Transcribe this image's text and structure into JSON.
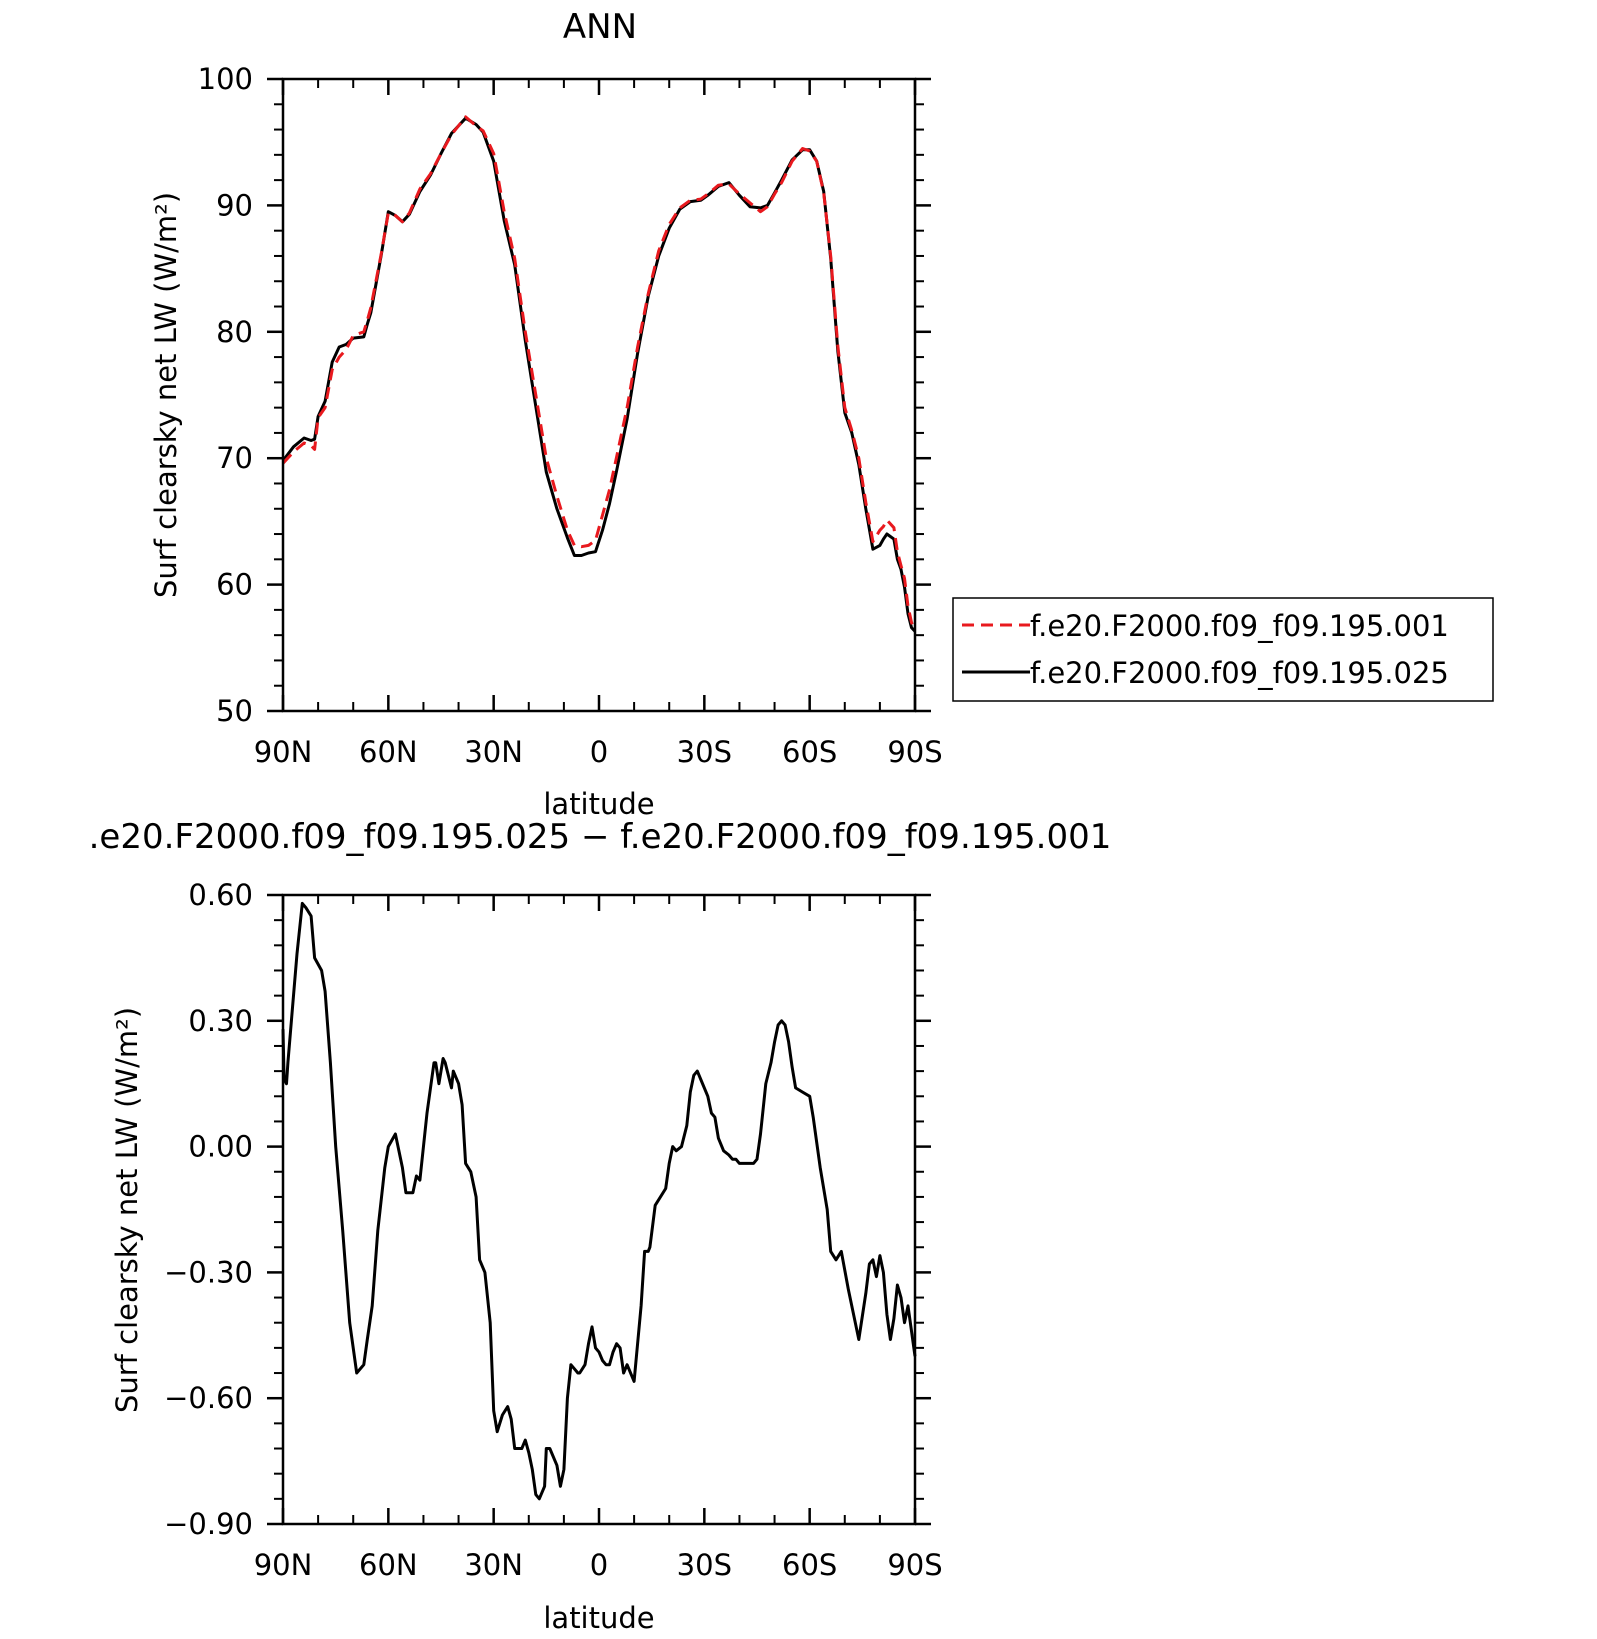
{
  "chart_data": [
    {
      "type": "line",
      "title": "ANN",
      "xlabel": "latitude",
      "ylabel": "Surf clearsky net LW (W/m²)",
      "xlim": [
        90,
        -90
      ],
      "ylim": [
        50,
        100
      ],
      "xticks": [
        {
          "value": 90,
          "label": "90N"
        },
        {
          "value": 60,
          "label": "60N"
        },
        {
          "value": 30,
          "label": "30N"
        },
        {
          "value": 0,
          "label": "0"
        },
        {
          "value": -30,
          "label": "30S"
        },
        {
          "value": -60,
          "label": "60S"
        },
        {
          "value": -90,
          "label": "90S"
        }
      ],
      "yticks": [
        {
          "value": 50,
          "label": "50"
        },
        {
          "value": 60,
          "label": "60"
        },
        {
          "value": 70,
          "label": "70"
        },
        {
          "value": 80,
          "label": "80"
        },
        {
          "value": 90,
          "label": "90"
        },
        {
          "value": 100,
          "label": "100"
        }
      ],
      "legend": "right",
      "series": [
        {
          "name": "f.e20.F2000.f09_f09.195.001",
          "color": "#e8191e",
          "dash": true,
          "x": [
            90,
            87,
            84,
            82,
            81,
            80,
            78,
            76,
            74,
            72,
            70,
            67,
            66,
            65,
            62,
            60,
            58,
            56,
            54,
            51,
            48,
            45,
            42,
            38,
            35,
            33,
            30,
            27,
            24,
            21,
            18,
            15,
            12,
            9,
            7,
            5,
            3,
            1,
            -1,
            -3,
            -5,
            -8,
            -11,
            -14,
            -17,
            -20,
            -23,
            -26,
            -29,
            -31,
            -34,
            -37,
            -40,
            -43,
            -46,
            -48,
            -50,
            -52,
            -55,
            -58,
            -60,
            -62,
            -64,
            -66,
            -68,
            -70,
            -72,
            -74,
            -76,
            -78,
            -80,
            -81,
            -82,
            -84,
            -85,
            -86,
            -87,
            -88,
            -89,
            -90
          ],
          "y": [
            69.6,
            70.5,
            71.2,
            71.0,
            70.7,
            73.2,
            74.0,
            77.0,
            78.0,
            78.6,
            79.7,
            80.0,
            80.9,
            81.9,
            86.2,
            89.4,
            89.2,
            88.7,
            89.4,
            91.3,
            92.5,
            94.1,
            95.6,
            97.0,
            96.3,
            95.9,
            94.1,
            89.5,
            85.8,
            80.0,
            75.0,
            70.0,
            67.0,
            64.3,
            63.1,
            63.0,
            63.1,
            63.5,
            65.5,
            67.5,
            70.1,
            74.0,
            78.8,
            83.0,
            86.4,
            88.5,
            89.8,
            90.4,
            90.5,
            90.9,
            91.6,
            91.7,
            90.9,
            90.2,
            89.5,
            89.9,
            90.9,
            91.8,
            93.5,
            94.5,
            94.3,
            93.5,
            91.0,
            86.0,
            78.9,
            74.0,
            72.2,
            70.0,
            66.5,
            63.4,
            64.3,
            64.6,
            65.1,
            64.5,
            62.6,
            61.5,
            60.5,
            58.3,
            57.0,
            56.4
          ]
        },
        {
          "name": "f.e20.F2000.f09_f09.195.025",
          "color": "#000000",
          "dash": false,
          "x": [
            90,
            87,
            84,
            82,
            81,
            80,
            78,
            76,
            74,
            72,
            70,
            67,
            66,
            65,
            62,
            60,
            58,
            56,
            54,
            51,
            48,
            45,
            42,
            38,
            35,
            33,
            30,
            27,
            24,
            21,
            18,
            15,
            12,
            9,
            7,
            5,
            3,
            1,
            -1,
            -3,
            -5,
            -8,
            -11,
            -14,
            -17,
            -20,
            -23,
            -26,
            -29,
            -31,
            -34,
            -37,
            -40,
            -43,
            -46,
            -48,
            -50,
            -52,
            -55,
            -58,
            -60,
            -62,
            -64,
            -66,
            -68,
            -70,
            -72,
            -74,
            -76,
            -78,
            -80,
            -81,
            -82,
            -84,
            -85,
            -86,
            -87,
            -88,
            -89,
            -90
          ],
          "y": [
            69.8,
            70.9,
            71.6,
            71.4,
            71.5,
            73.3,
            74.5,
            77.6,
            78.8,
            79.0,
            79.5,
            79.6,
            80.6,
            81.5,
            86.1,
            89.5,
            89.2,
            88.7,
            89.3,
            91.1,
            92.4,
            94.1,
            95.7,
            96.9,
            96.4,
            95.8,
            93.5,
            88.8,
            85.3,
            79.3,
            74.1,
            68.9,
            66.0,
            63.7,
            62.3,
            62.3,
            62.5,
            62.6,
            64.3,
            66.4,
            69.0,
            73.1,
            78.3,
            82.8,
            86.0,
            88.2,
            89.7,
            90.3,
            90.4,
            90.8,
            91.5,
            91.8,
            90.8,
            89.9,
            89.8,
            90.0,
            91.0,
            92.0,
            93.6,
            94.4,
            94.4,
            93.5,
            91.1,
            85.8,
            78.5,
            73.6,
            72.0,
            69.5,
            66.0,
            62.8,
            63.1,
            63.6,
            64.0,
            63.6,
            62.0,
            61.2,
            59.8,
            57.7,
            56.6,
            56.3
          ]
        }
      ]
    },
    {
      "type": "line",
      "title": ".e20.F2000.f09_f09.195.025 − f.e20.F2000.f09_f09.195.001",
      "xlabel": "latitude",
      "ylabel": "Surf clearsky net LW (W/m²)",
      "xlim": [
        90,
        -90
      ],
      "ylim": [
        -0.9,
        0.6
      ],
      "xticks": [
        {
          "value": 90,
          "label": "90N"
        },
        {
          "value": 60,
          "label": "60N"
        },
        {
          "value": 30,
          "label": "30N"
        },
        {
          "value": 0,
          "label": "0"
        },
        {
          "value": -30,
          "label": "30S"
        },
        {
          "value": -60,
          "label": "60S"
        },
        {
          "value": -90,
          "label": "90S"
        }
      ],
      "yticks": [
        {
          "value": 0.6,
          "label": "0.60"
        },
        {
          "value": 0.3,
          "label": "0.30"
        },
        {
          "value": 0.0,
          "label": "0.00"
        },
        {
          "value": -0.3,
          "label": "−0.30"
        },
        {
          "value": -0.6,
          "label": "−0.60"
        },
        {
          "value": -0.9,
          "label": "−0.90"
        }
      ],
      "series": [
        {
          "color": "#000000",
          "dash": false,
          "x": [
            90,
            89.7,
            89,
            88.6,
            87,
            86,
            84.5,
            83.5,
            82,
            81,
            79,
            78,
            76.5,
            75,
            73,
            71,
            69,
            67,
            66,
            64.6,
            63,
            61,
            60,
            58,
            56,
            55,
            54,
            53,
            52,
            51,
            49,
            47,
            46.5,
            45.6,
            44.4,
            43.8,
            42,
            41.5,
            40,
            39,
            38,
            36.5,
            35,
            34,
            32.5,
            31,
            30,
            29,
            27.5,
            26,
            25,
            24,
            22,
            21,
            20,
            19,
            18,
            17,
            15.5,
            15,
            14,
            12,
            11,
            10,
            9,
            8,
            7,
            6,
            5.5,
            4,
            3,
            2,
            1,
            0,
            -1,
            -2,
            -3,
            -4,
            -5,
            -6,
            -7,
            -8,
            -10,
            -12,
            -13,
            -14,
            -14.5,
            -16,
            -19,
            -20,
            -21,
            -22,
            -23.5,
            -25,
            -26,
            -27,
            -28,
            -29,
            -31,
            -32,
            -33,
            -34,
            -35.5,
            -37,
            -38,
            -39,
            -40,
            -42,
            -44,
            -45,
            -46,
            -47.5,
            -49,
            -50,
            -51,
            -52,
            -53,
            -54,
            -55,
            -56,
            -58,
            -60,
            -61,
            -63,
            -65,
            -66,
            -67.5,
            -69,
            -71,
            -74,
            -76,
            -77,
            -78,
            -79,
            -80,
            -81,
            -82,
            -83,
            -84,
            -85,
            -86,
            -87,
            -88,
            -89,
            -90
          ],
          "y": [
            0.28,
            0.16,
            0.15,
            0.2,
            0.36,
            0.46,
            0.58,
            0.57,
            0.55,
            0.45,
            0.42,
            0.37,
            0.2,
            0.0,
            -0.2,
            -0.42,
            -0.54,
            -0.52,
            -0.46,
            -0.38,
            -0.2,
            -0.05,
            0.0,
            0.03,
            -0.05,
            -0.11,
            -0.11,
            -0.11,
            -0.07,
            -0.08,
            0.08,
            0.2,
            0.2,
            0.15,
            0.21,
            0.2,
            0.14,
            0.18,
            0.15,
            0.1,
            -0.04,
            -0.06,
            -0.12,
            -0.27,
            -0.3,
            -0.42,
            -0.63,
            -0.68,
            -0.64,
            -0.62,
            -0.65,
            -0.72,
            -0.72,
            -0.7,
            -0.73,
            -0.77,
            -0.83,
            -0.84,
            -0.81,
            -0.72,
            -0.72,
            -0.76,
            -0.81,
            -0.77,
            -0.6,
            -0.52,
            -0.53,
            -0.54,
            -0.54,
            -0.52,
            -0.47,
            -0.43,
            -0.48,
            -0.49,
            -0.51,
            -0.52,
            -0.52,
            -0.49,
            -0.47,
            -0.48,
            -0.54,
            -0.52,
            -0.56,
            -0.38,
            -0.25,
            -0.25,
            -0.24,
            -0.14,
            -0.1,
            -0.04,
            0.0,
            -0.01,
            0.0,
            0.05,
            0.13,
            0.17,
            0.18,
            0.16,
            0.12,
            0.08,
            0.07,
            0.02,
            -0.01,
            -0.02,
            -0.03,
            -0.03,
            -0.04,
            -0.04,
            -0.04,
            -0.03,
            0.03,
            0.15,
            0.2,
            0.25,
            0.29,
            0.3,
            0.29,
            0.25,
            0.19,
            0.14,
            0.13,
            0.12,
            0.07,
            -0.05,
            -0.15,
            -0.25,
            -0.27,
            -0.25,
            -0.34,
            -0.46,
            -0.35,
            -0.28,
            -0.27,
            -0.31,
            -0.26,
            -0.3,
            -0.4,
            -0.46,
            -0.41,
            -0.33,
            -0.36,
            -0.42,
            -0.38,
            -0.44,
            -0.5
          ]
        }
      ]
    }
  ]
}
